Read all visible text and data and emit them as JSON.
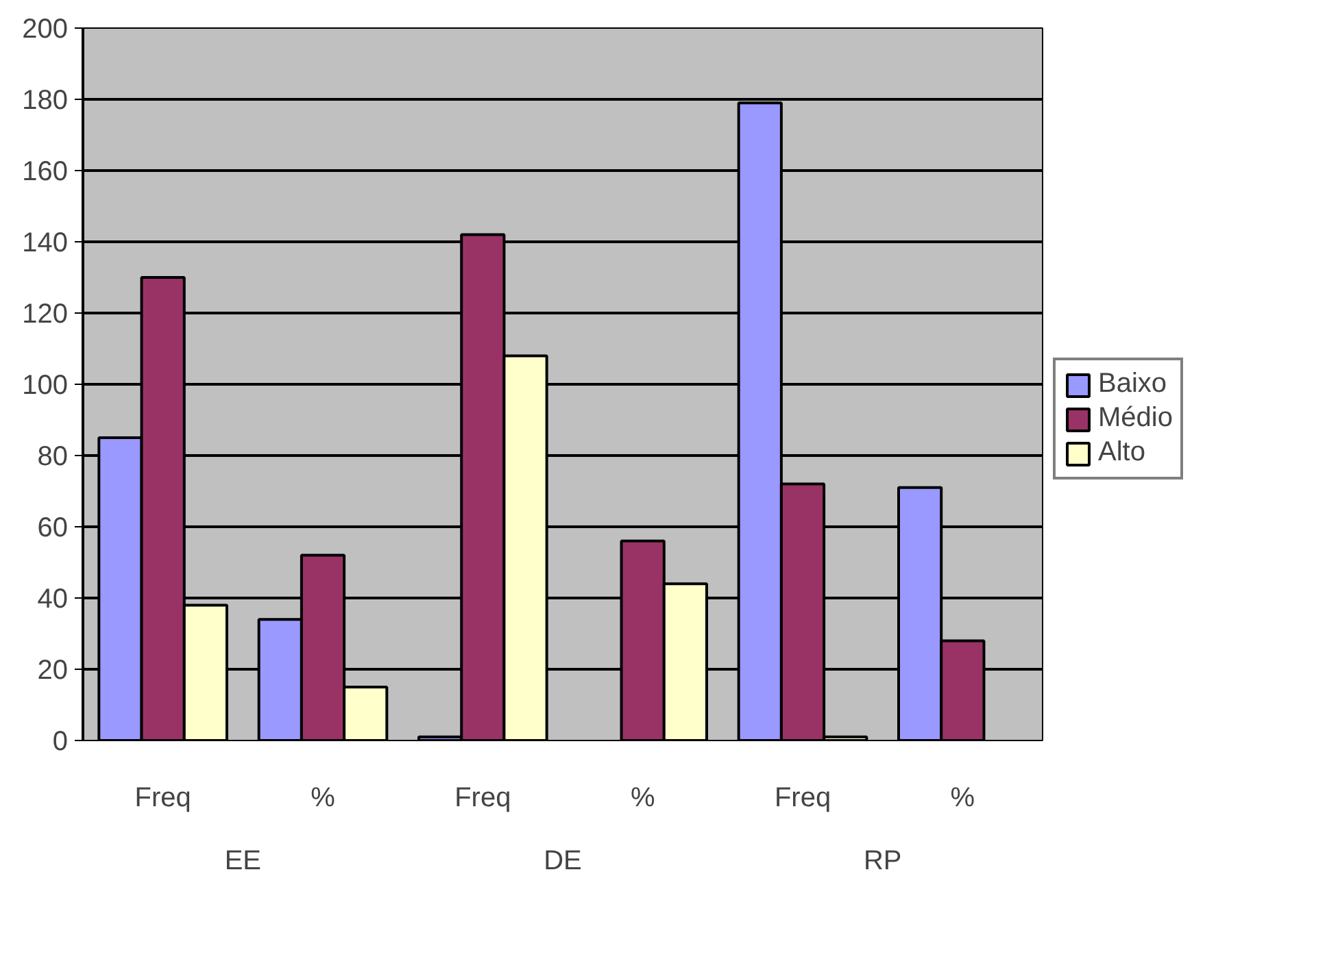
{
  "chart_data": {
    "type": "bar",
    "categories": [
      "Freq",
      "%",
      "Freq",
      "%",
      "Freq",
      "%"
    ],
    "annotations": [
      "EE",
      "DE",
      "RP"
    ],
    "series": [
      {
        "name": "Baixo",
        "color": "#9999ff",
        "values": [
          85,
          34,
          1,
          null,
          179,
          71
        ]
      },
      {
        "name": "Médio",
        "color": "#993366",
        "values": [
          130,
          52,
          142,
          56,
          72,
          28
        ]
      },
      {
        "name": "Alto",
        "color": "#ffffcc",
        "values": [
          38,
          15,
          108,
          44,
          1,
          null
        ]
      }
    ],
    "ylim": [
      0,
      200
    ],
    "yticks": [
      0,
      20,
      40,
      60,
      80,
      100,
      120,
      140,
      160,
      180,
      200
    ],
    "grid": "y",
    "legend": "right"
  }
}
